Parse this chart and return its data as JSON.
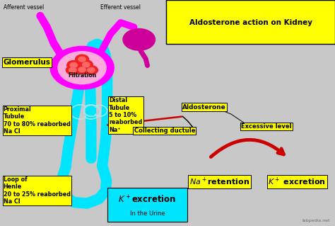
{
  "bg_color": "#c8c8c8",
  "title": "Aldosterone action on Kidney",
  "cyan_color": "#00e5ff",
  "magenta_color": "#ff00ff",
  "dark_magenta": "#cc0099",
  "red_color": "#cc0000",
  "yellow_color": "#ffff00",
  "labels": {
    "afferent": "Afferent vessel",
    "efferent": "Efferent vessel",
    "glomerulus": "Glomerulus",
    "filtration": "Filtration",
    "proximal": "Proximal\nTubule\n70 to 80% reaborbed\nNa Cl",
    "distal": "Distal\nTubule\n5 to 10%\nreaborbed\nNa⁺",
    "loop": "Loop of\nHenle\n20 to 25% reaborbed\nNa Cl",
    "k_excretion_box": "K⁺excretion",
    "in_urine": "In the Urine",
    "aldosterone": "Aldosterone",
    "collecting": "Collecting ductule",
    "excessive": "Excessive level",
    "na_retention": "Na⁺retention",
    "k_excretion2": "K⁺ excretion"
  },
  "watermark": "labpedia.net"
}
